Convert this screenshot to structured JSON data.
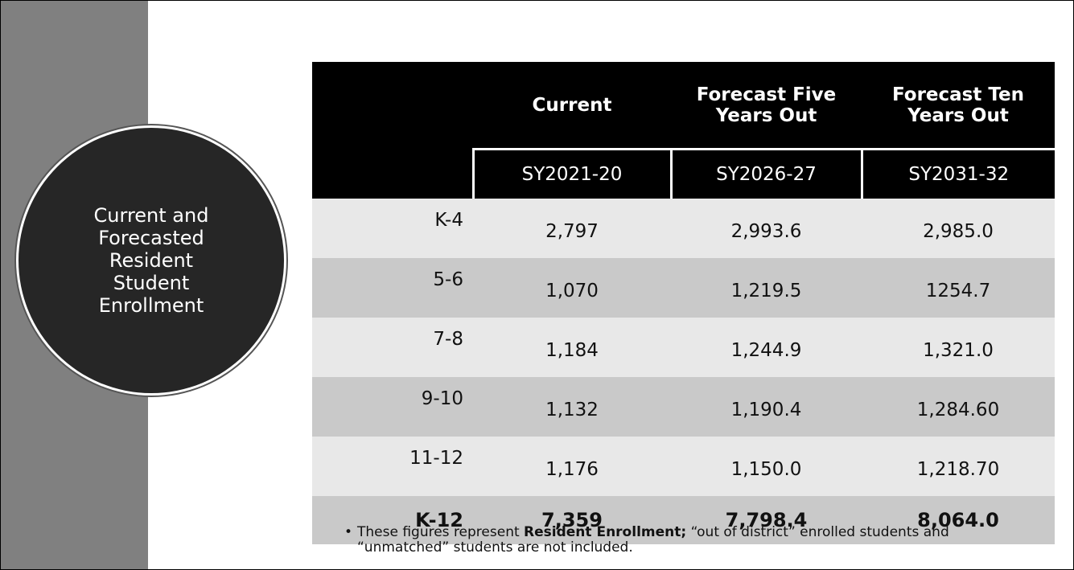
{
  "sidebar": {
    "title": "Current and Forecasted Resident Student Enrollment"
  },
  "table": {
    "header": [
      "Current",
      "Forecast Five Years Out",
      "Forecast Ten Years Out"
    ],
    "subheader": [
      "SY2021-20",
      "SY2026-27",
      "SY2031-32"
    ],
    "rows": [
      [
        "K-4",
        "2,797",
        "2,993.6",
        "2,985.0"
      ],
      [
        "5-6",
        "1,070",
        "1,219.5",
        "1254.7"
      ],
      [
        "7-8",
        "1,184",
        "1,244.9",
        "1,321.0"
      ],
      [
        "9-10",
        "1,132",
        "1,190.4",
        "1,284.60"
      ],
      [
        "11-12",
        "1,176",
        "1,150.0",
        "1,218.70"
      ],
      [
        "K-12",
        "7,359",
        "7,798.4",
        "8,064.0"
      ]
    ]
  },
  "note": {
    "before": "These figures represent ",
    "bold": "Resident Enrollment;",
    "after": " “out of district” enrolled students and “unmatched” students are not included."
  }
}
